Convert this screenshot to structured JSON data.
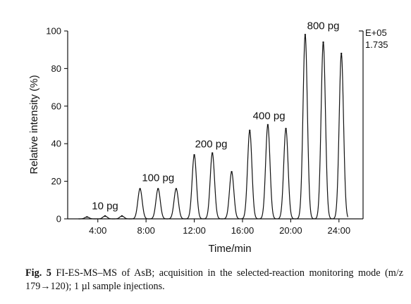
{
  "chart_data": {
    "type": "line",
    "title": "",
    "xlabel": "Time/min",
    "ylabel": "Relative intensity (%)",
    "xlim": [
      1.5,
      26
    ],
    "ylim": [
      0,
      100
    ],
    "x_ticks": [
      {
        "value": 4,
        "label": "4:00"
      },
      {
        "value": 8,
        "label": "8:00"
      },
      {
        "value": 12,
        "label": "12:00"
      },
      {
        "value": 16,
        "label": "16:00"
      },
      {
        "value": 20,
        "label": "20:00"
      },
      {
        "value": 24,
        "label": "24:00"
      }
    ],
    "y_ticks": [
      {
        "value": 0,
        "label": "0"
      },
      {
        "value": 20,
        "label": "20"
      },
      {
        "value": 40,
        "label": "40"
      },
      {
        "value": 60,
        "label": "60"
      },
      {
        "value": 80,
        "label": "80"
      },
      {
        "value": 100,
        "label": "100"
      }
    ],
    "scale_exponent": "E+05",
    "scale_value": "1.735",
    "series": [
      {
        "peaks": [
          {
            "x": 3.1,
            "y": 1
          },
          {
            "x": 4.6,
            "y": 1.5
          },
          {
            "x": 6.0,
            "y": 1.5
          },
          {
            "x": 7.5,
            "y": 16
          },
          {
            "x": 9.0,
            "y": 16
          },
          {
            "x": 10.5,
            "y": 16
          },
          {
            "x": 12.0,
            "y": 34
          },
          {
            "x": 13.5,
            "y": 35
          },
          {
            "x": 15.1,
            "y": 25
          },
          {
            "x": 16.6,
            "y": 47
          },
          {
            "x": 18.1,
            "y": 50
          },
          {
            "x": 19.6,
            "y": 48
          },
          {
            "x": 21.2,
            "y": 98
          },
          {
            "x": 22.7,
            "y": 94
          },
          {
            "x": 24.2,
            "y": 88
          }
        ]
      }
    ],
    "annotations": [
      {
        "text": "10 pg",
        "x": 4.6,
        "y": 5
      },
      {
        "text": "100 pg",
        "x": 9.0,
        "y": 20
      },
      {
        "text": "200 pg",
        "x": 13.4,
        "y": 38
      },
      {
        "text": "400 pg",
        "x": 18.2,
        "y": 53
      },
      {
        "text": "800 pg",
        "x": 22.7,
        "y": 101
      }
    ]
  },
  "caption": {
    "label": "Fig. 5",
    "text": "FI-ES-MS–MS of AsB; acquisition in the selected-reaction monitoring mode (m/z 179→120); 1 µl sample injections."
  }
}
